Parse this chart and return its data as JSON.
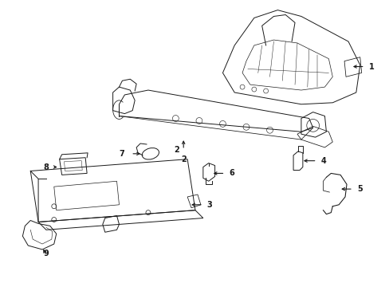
{
  "bg_color": "#ffffff",
  "line_color": "#1a1a1a",
  "lw": 0.7,
  "figsize": [
    4.89,
    3.6
  ],
  "dpi": 100
}
